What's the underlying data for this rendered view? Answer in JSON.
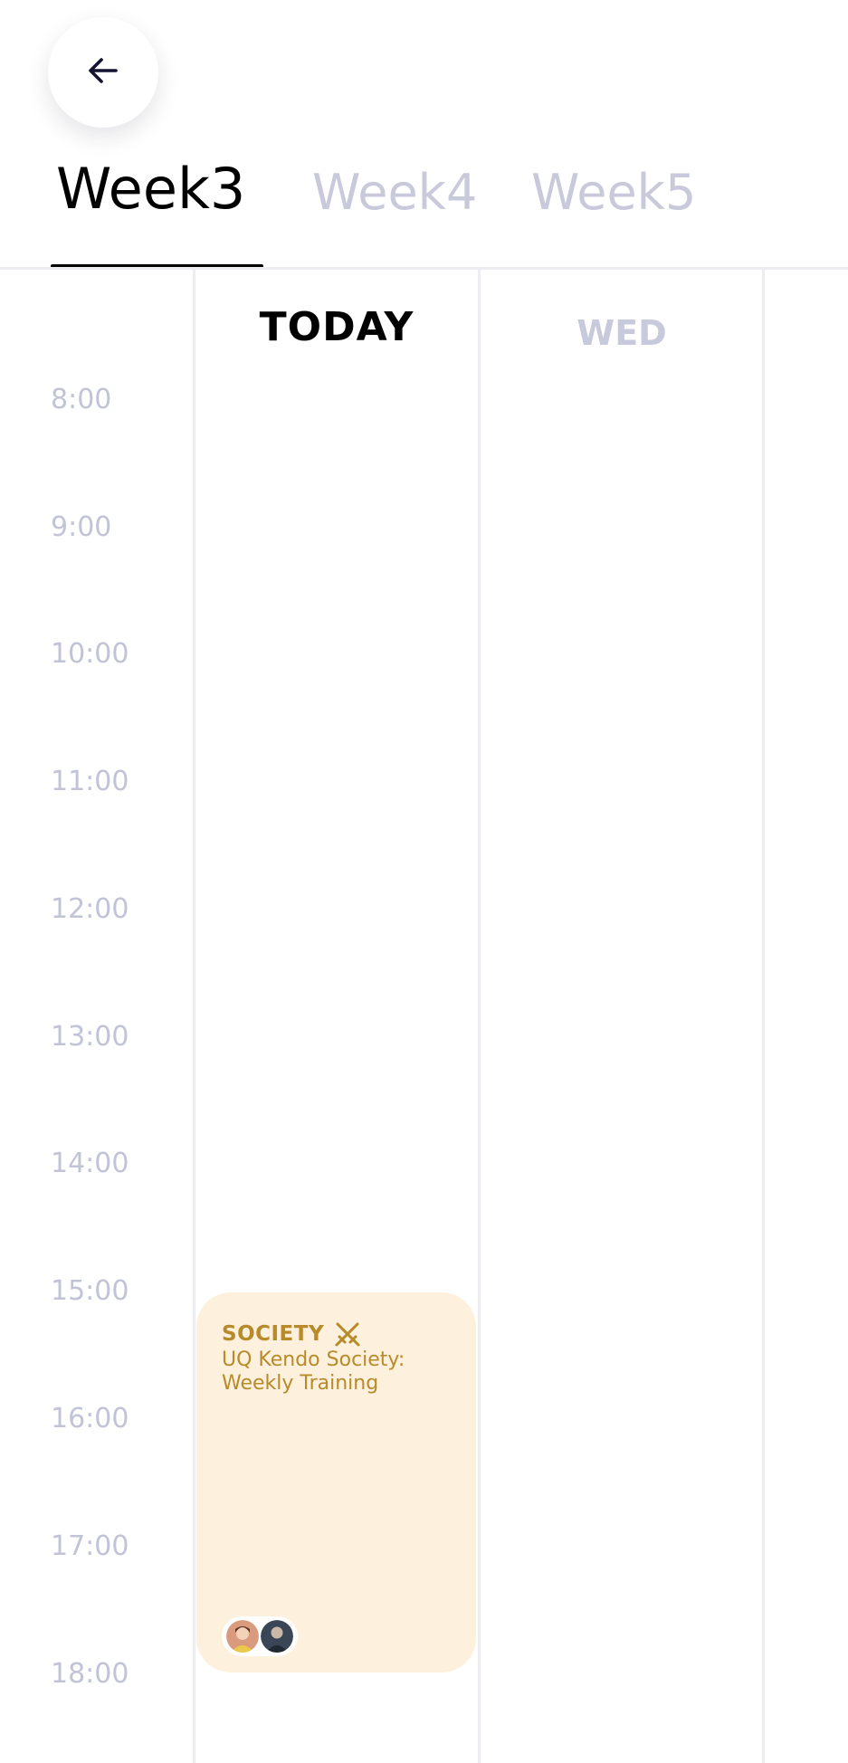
{
  "navigation": {
    "back_icon": "arrow-left-icon"
  },
  "tabs": [
    {
      "label": "Week3",
      "active": true
    },
    {
      "label": "Week4",
      "active": false
    },
    {
      "label": "Week5",
      "active": false
    }
  ],
  "days": {
    "today": "TODAY",
    "wed": "WED"
  },
  "times": [
    "8:00",
    "9:00",
    "10:00",
    "11:00",
    "12:00",
    "13:00",
    "14:00",
    "15:00",
    "16:00",
    "17:00",
    "18:00"
  ],
  "event": {
    "category": "SOCIETY",
    "category_icon": "crossed-swords-icon",
    "title": "UQ Kendo Society: Weekly Training",
    "attendee_count": 2
  },
  "colors": {
    "event_bg": "#fdf0dc",
    "event_text": "#b88a2a",
    "inactive_text": "#c9c9dc",
    "active_text": "#000000",
    "grid_line": "#ececf1"
  }
}
